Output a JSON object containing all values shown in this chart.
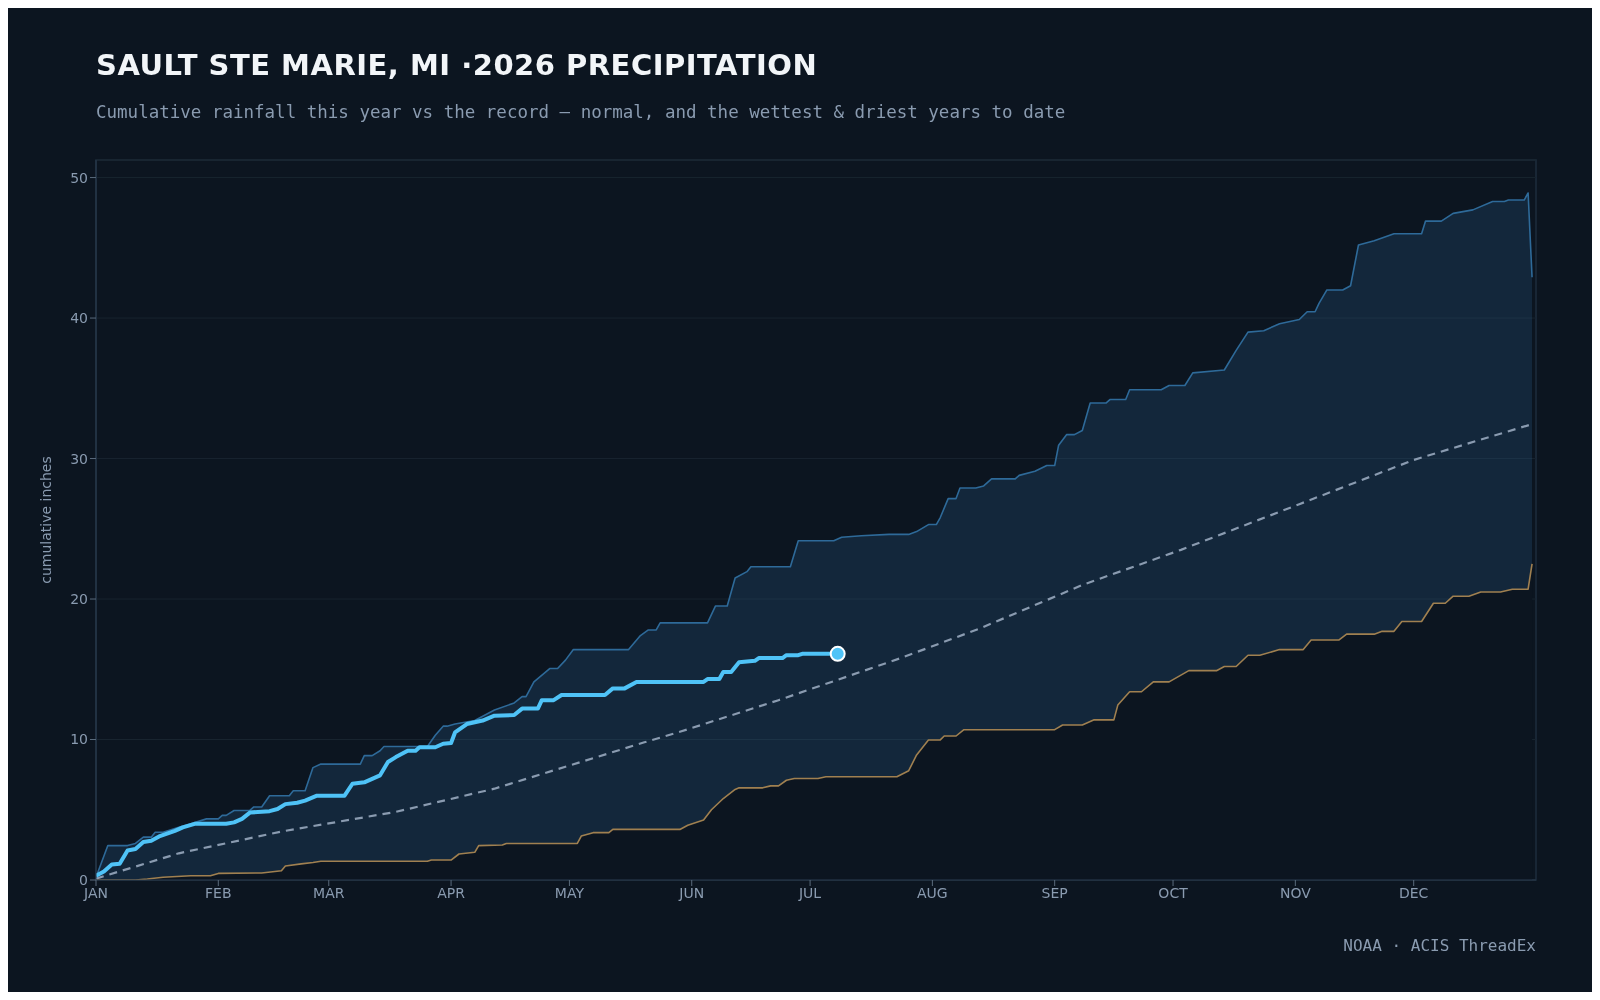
{
  "chart_data": {
    "type": "line",
    "title": "SAULT STE MARIE, MI ·2026 PRECIPITATION",
    "subtitle": "Cumulative rainfall this year vs the record — normal, and the wettest & driest years to date",
    "ylabel": "cumulative inches",
    "annotations": [
      "NOAA · ACIS ThreadEx"
    ],
    "xlim": [
      "--01-01",
      "--12-31"
    ],
    "xticks": [
      {
        "value": "--01-01",
        "label": "JAN"
      },
      {
        "value": "--02-01",
        "label": "FEB"
      },
      {
        "value": "--03-01",
        "label": "MAR"
      },
      {
        "value": "--04-01",
        "label": "APR"
      },
      {
        "value": "--05-01",
        "label": "MAY"
      },
      {
        "value": "--06-01",
        "label": "JUN"
      },
      {
        "value": "--07-01",
        "label": "JUL"
      },
      {
        "value": "--08-01",
        "label": "AUG"
      },
      {
        "value": "--09-01",
        "label": "SEP"
      },
      {
        "value": "--10-01",
        "label": "OCT"
      },
      {
        "value": "--11-01",
        "label": "NOV"
      },
      {
        "value": "--12-01",
        "label": "DEC"
      }
    ],
    "ylim": [
      0,
      51.25
    ],
    "yticks": [
      0,
      10,
      20,
      30,
      40,
      50
    ],
    "grid": "y",
    "series": [
      {
        "type": "area",
        "color": "#2e6a99",
        "x": [
          "--01-01",
          "--01-04",
          "--01-09",
          "--01-11",
          "--01-13",
          "--01-15",
          "--01-16",
          "--01-18",
          "--01-22",
          "--01-25",
          "--01-29",
          "--02-01",
          "--02-02",
          "--02-03",
          "--02-05",
          "--02-09",
          "--02-10",
          "--02-12",
          "--02-14",
          "--02-19",
          "--02-20",
          "--02-23",
          "--02-25",
          "--02-27",
          "--03-09",
          "--03-10",
          "--03-12",
          "--03-14",
          "--03-15",
          "--03-26",
          "--03-28",
          "--03-30",
          "--03-31",
          "--04-02",
          "--04-07",
          "--04-12",
          "--04-17",
          "--04-19",
          "--04-20",
          "--04-22",
          "--04-26",
          "--04-28",
          "--04-30",
          "--05-02",
          "--05-16",
          "--05-19",
          "--05-21",
          "--05-23",
          "--05-24",
          "--06-05",
          "--06-07",
          "--06-10",
          "--06-12",
          "--06-15",
          "--06-16",
          "--06-26",
          "--06-28",
          "--07-07",
          "--07-09",
          "--07-14",
          "--07-21",
          "--07-26",
          "--07-28",
          "--07-31",
          "--08-02",
          "--08-03",
          "--08-05",
          "--08-07",
          "--08-08",
          "--08-12",
          "--08-14",
          "--08-16",
          "--08-22",
          "--08-23",
          "--08-27",
          "--08-30",
          "--09-01",
          "--09-02",
          "--09-04",
          "--09-06",
          "--09-08",
          "--09-10",
          "--09-14",
          "--09-15",
          "--09-19",
          "--09-20",
          "--09-28",
          "--09-30",
          "--10-04",
          "--10-06",
          "--10-14",
          "--10-17",
          "--10-20",
          "--10-24",
          "--10-28",
          "--11-02",
          "--11-04",
          "--11-06",
          "--11-07",
          "--11-09",
          "--11-13",
          "--11-15",
          "--11-17",
          "--11-21",
          "--11-26",
          "--12-03",
          "--12-04",
          "--12-08",
          "--12-11",
          "--12-16",
          "--12-21",
          "--12-24",
          "--12-25",
          "--12-29",
          "--12-30",
          "--12-31"
        ],
        "values": [
          0.2,
          2.45,
          2.45,
          2.6,
          3.05,
          3.05,
          3.4,
          3.4,
          3.75,
          4.0,
          4.35,
          4.35,
          4.6,
          4.6,
          4.95,
          4.95,
          5.2,
          5.2,
          6.0,
          6.0,
          6.35,
          6.35,
          8.0,
          8.25,
          8.25,
          8.85,
          8.85,
          9.2,
          9.5,
          9.5,
          10.3,
          10.95,
          10.95,
          11.1,
          11.35,
          12.1,
          12.6,
          13.05,
          13.05,
          14.1,
          15.05,
          15.05,
          15.65,
          16.4,
          16.4,
          17.4,
          17.8,
          17.8,
          18.3,
          18.3,
          19.5,
          19.5,
          21.5,
          21.95,
          22.3,
          22.3,
          24.15,
          24.15,
          24.4,
          24.5,
          24.6,
          24.6,
          24.8,
          25.3,
          25.3,
          25.8,
          27.15,
          27.15,
          27.9,
          27.9,
          28.05,
          28.55,
          28.55,
          28.8,
          29.1,
          29.5,
          29.5,
          30.95,
          31.7,
          31.7,
          32.0,
          33.95,
          33.95,
          34.2,
          34.2,
          34.9,
          34.9,
          35.2,
          35.2,
          36.1,
          36.3,
          37.7,
          39.0,
          39.1,
          39.6,
          39.9,
          40.45,
          40.45,
          41.05,
          42.0,
          42.0,
          42.3,
          45.2,
          45.5,
          46.0,
          46.0,
          46.9,
          46.9,
          47.45,
          47.7,
          48.3,
          48.3,
          48.4,
          48.4,
          48.9,
          42.9
        ]
      },
      {
        "type": "area",
        "color": "#a08050",
        "x": [
          "--01-01",
          "--01-11",
          "--01-14",
          "--01-18",
          "--01-25",
          "--01-30",
          "--02-01",
          "--02-12",
          "--02-17",
          "--02-18",
          "--02-22",
          "--02-25",
          "--02-27",
          "--03-26",
          "--03-27",
          "--04-01",
          "--04-03",
          "--04-07",
          "--04-08",
          "--04-14",
          "--04-15",
          "--05-03",
          "--05-04",
          "--05-07",
          "--05-11",
          "--05-12",
          "--05-29",
          "--05-31",
          "--06-04",
          "--06-06",
          "--06-09",
          "--06-12",
          "--06-13",
          "--06-19",
          "--06-21",
          "--06-23",
          "--06-25",
          "--06-27",
          "--07-03",
          "--07-05",
          "--07-23",
          "--07-26",
          "--07-28",
          "--07-31",
          "--08-03",
          "--08-04",
          "--08-07",
          "--08-09",
          "--09-01",
          "--09-03",
          "--09-08",
          "--09-11",
          "--09-16",
          "--09-17",
          "--09-20",
          "--09-23",
          "--09-26",
          "--09-30",
          "--10-05",
          "--10-12",
          "--10-14",
          "--10-17",
          "--10-20",
          "--10-23",
          "--10-28",
          "--11-03",
          "--11-05",
          "--11-12",
          "--11-14",
          "--11-21",
          "--11-23",
          "--11-26",
          "--11-28",
          "--12-03",
          "--12-06",
          "--12-09",
          "--12-11",
          "--12-15",
          "--12-18",
          "--12-23",
          "--12-26",
          "--12-30",
          "--12-31"
        ],
        "values": [
          0,
          0,
          0.07,
          0.2,
          0.3,
          0.3,
          0.47,
          0.5,
          0.66,
          1.0,
          1.15,
          1.25,
          1.33,
          1.33,
          1.42,
          1.42,
          1.85,
          1.97,
          2.45,
          2.49,
          2.6,
          2.6,
          3.13,
          3.37,
          3.37,
          3.6,
          3.6,
          3.9,
          4.27,
          5.0,
          5.8,
          6.45,
          6.56,
          6.56,
          6.7,
          6.7,
          7.1,
          7.23,
          7.23,
          7.35,
          7.35,
          7.78,
          8.9,
          9.97,
          9.97,
          10.25,
          10.25,
          10.7,
          10.7,
          11.03,
          11.03,
          11.4,
          11.4,
          12.45,
          13.4,
          13.4,
          14.1,
          14.1,
          14.9,
          14.9,
          15.2,
          15.2,
          16.0,
          16.0,
          16.4,
          16.4,
          17.08,
          17.08,
          17.5,
          17.5,
          17.7,
          17.7,
          18.4,
          18.4,
          19.7,
          19.7,
          20.2,
          20.2,
          20.5,
          20.5,
          20.7,
          20.7,
          22.5
        ]
      },
      {
        "color": "#8a9bb0",
        "line_style": "dashed",
        "x": [
          "--01-01",
          "--01-22",
          "--02-17",
          "--03-18",
          "--04-12",
          "--05-20",
          "--05-29",
          "--06-23",
          "--07-24",
          "--08-13",
          "--09-08",
          "--10-03",
          "--11-02",
          "--12-01",
          "--12-31"
        ],
        "values": [
          0.1,
          1.9,
          3.45,
          4.85,
          6.5,
          9.8,
          10.55,
          12.8,
          15.8,
          17.9,
          21.0,
          23.5,
          26.75,
          29.9,
          32.45
        ]
      },
      {
        "color": "#4fc3f7",
        "x": [
          "--01-01",
          "--01-03",
          "--01-05",
          "--01-07",
          "--01-09",
          "--01-11",
          "--01-13",
          "--01-15",
          "--01-17",
          "--01-19",
          "--01-21",
          "--01-23",
          "--01-26",
          "--02-03",
          "--02-05",
          "--02-07",
          "--02-09",
          "--02-14",
          "--02-16",
          "--02-18",
          "--02-21",
          "--02-23",
          "--02-26",
          "--03-05",
          "--03-07",
          "--03-10",
          "--03-12",
          "--03-14",
          "--03-16",
          "--03-18",
          "--03-21",
          "--03-23",
          "--03-24",
          "--03-28",
          "--03-30",
          "--04-01",
          "--04-02",
          "--04-05",
          "--04-09",
          "--04-12",
          "--04-17",
          "--04-19",
          "--04-23",
          "--04-24",
          "--04-27",
          "--04-29",
          "--05-10",
          "--05-12",
          "--05-15",
          "--05-18",
          "--06-04",
          "--06-05",
          "--06-08",
          "--06-09",
          "--06-11",
          "--06-13",
          "--06-17",
          "--06-18",
          "--06-24",
          "--06-25",
          "--06-28",
          "--06-29",
          "--07-08"
        ],
        "values": [
          0.3,
          0.6,
          1.1,
          1.15,
          2.1,
          2.2,
          2.7,
          2.8,
          3.1,
          3.3,
          3.5,
          3.75,
          4.0,
          4.0,
          4.1,
          4.35,
          4.8,
          4.9,
          5.05,
          5.4,
          5.5,
          5.65,
          6.0,
          6.0,
          6.85,
          6.95,
          7.2,
          7.45,
          8.4,
          8.75,
          9.2,
          9.2,
          9.45,
          9.45,
          9.7,
          9.75,
          10.5,
          11.1,
          11.35,
          11.7,
          11.74,
          12.2,
          12.2,
          12.8,
          12.8,
          13.17,
          13.17,
          13.64,
          13.64,
          14.1,
          14.1,
          14.3,
          14.3,
          14.8,
          14.8,
          15.5,
          15.6,
          15.8,
          15.8,
          16.0,
          16.0,
          16.1,
          16.1
        ]
      },
      {
        "type": "scatter",
        "color": "#4fc3f7",
        "marker": "circle",
        "x": [
          "--07-08"
        ],
        "values": [
          16.1
        ]
      }
    ]
  }
}
